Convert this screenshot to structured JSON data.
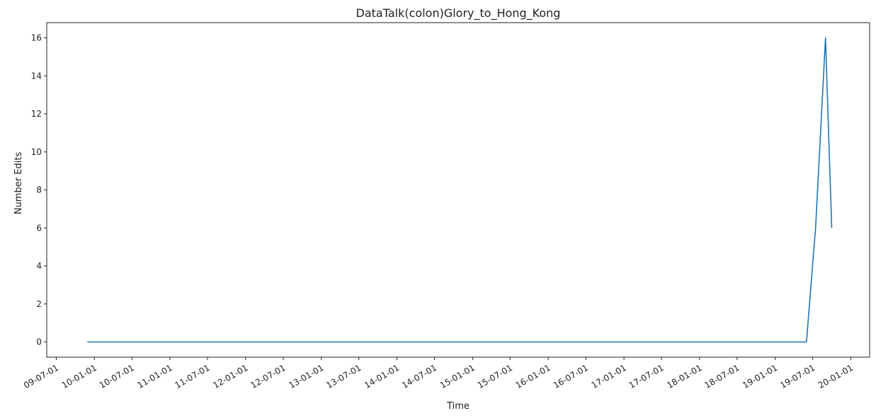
{
  "chart_data": {
    "type": "line",
    "title": "DataTalk(colon)Glory_to_Hong_Kong",
    "xlabel": "Time",
    "ylabel": "Number Edits",
    "x_format": "YY-MM-DD",
    "xlim": [
      "2009-05-16",
      "2020-04-01"
    ],
    "ylim": [
      -0.8,
      16.8
    ],
    "y_ticks": [
      0,
      2,
      4,
      6,
      8,
      10,
      12,
      14,
      16
    ],
    "x_ticks": [
      "09-07-01",
      "10-01-01",
      "10-07-01",
      "11-01-01",
      "11-07-01",
      "12-01-01",
      "12-07-01",
      "13-01-01",
      "13-07-01",
      "14-01-01",
      "14-07-01",
      "15-01-01",
      "15-07-01",
      "16-01-01",
      "16-07-01",
      "17-01-01",
      "17-07-01",
      "18-01-01",
      "18-07-01",
      "19-01-01",
      "19-07-01",
      "20-01-01"
    ],
    "x_tick_dates": [
      "2009-07-01",
      "2010-01-01",
      "2010-07-01",
      "2011-01-01",
      "2011-07-01",
      "2012-01-01",
      "2012-07-01",
      "2013-01-01",
      "2013-07-01",
      "2014-01-01",
      "2014-07-01",
      "2015-01-01",
      "2015-07-01",
      "2016-01-01",
      "2016-07-01",
      "2017-01-01",
      "2017-07-01",
      "2018-01-01",
      "2018-07-01",
      "2019-01-01",
      "2019-07-01",
      "2020-01-01"
    ],
    "grid": false,
    "legend": "none",
    "series": [
      {
        "color": "#1f77b4",
        "x": [
          "2009-11-28",
          "2019-06-01",
          "2019-07-15",
          "2019-09-01",
          "2019-10-01"
        ],
        "values": [
          0,
          0,
          6,
          16,
          6
        ]
      }
    ]
  }
}
